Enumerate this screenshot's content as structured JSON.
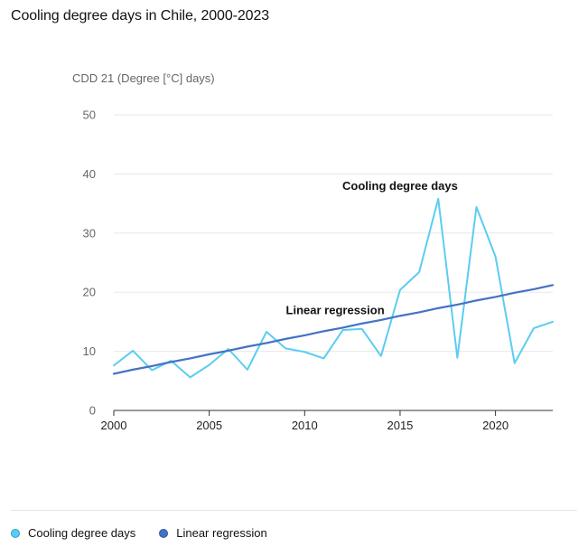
{
  "title": "Cooling degree days in Chile, 2000-2023",
  "colors": {
    "cdd_line": "#5bcdf0",
    "regression_line": "#4472c4",
    "grid": "#e8e8e8",
    "axis": "#333333"
  },
  "chart_data": {
    "type": "line",
    "ylabel": "CDD 21 (Degree [°C] days)",
    "xlabel": "",
    "xlim": [
      2000,
      2023
    ],
    "ylim": [
      0,
      50
    ],
    "x_ticks": [
      2000,
      2005,
      2010,
      2015,
      2020
    ],
    "y_ticks": [
      0,
      10,
      20,
      30,
      40,
      50
    ],
    "grid": true,
    "legend_position": "bottom-left",
    "x": [
      2000,
      2001,
      2002,
      2003,
      2004,
      2005,
      2006,
      2007,
      2008,
      2009,
      2010,
      2011,
      2012,
      2013,
      2014,
      2015,
      2016,
      2017,
      2018,
      2019,
      2020,
      2021,
      2022,
      2023
    ],
    "series": [
      {
        "name": "Cooling degree days",
        "values": [
          7.6,
          10.1,
          6.8,
          8.4,
          5.6,
          7.7,
          10.4,
          6.9,
          13.3,
          10.5,
          9.9,
          8.8,
          13.6,
          13.8,
          9.2,
          20.4,
          23.4,
          35.8,
          8.9,
          34.4,
          26.0,
          8.0,
          13.9,
          15.0
        ]
      },
      {
        "name": "Linear regression",
        "values": [
          6.2,
          6.9,
          7.5,
          8.2,
          8.8,
          9.5,
          10.1,
          10.8,
          11.4,
          12.1,
          12.7,
          13.4,
          14.0,
          14.7,
          15.3,
          16.0,
          16.6,
          17.3,
          17.9,
          18.6,
          19.2,
          19.9,
          20.5,
          21.2
        ]
      }
    ],
    "annotations": [
      {
        "text": "Cooling degree days",
        "series": "Cooling degree days"
      },
      {
        "text": "Linear regression",
        "series": "Linear regression"
      }
    ]
  },
  "legend": [
    {
      "label": "Cooling degree days",
      "color": "#5bcdf0"
    },
    {
      "label": "Linear regression",
      "color": "#4472c4"
    }
  ]
}
